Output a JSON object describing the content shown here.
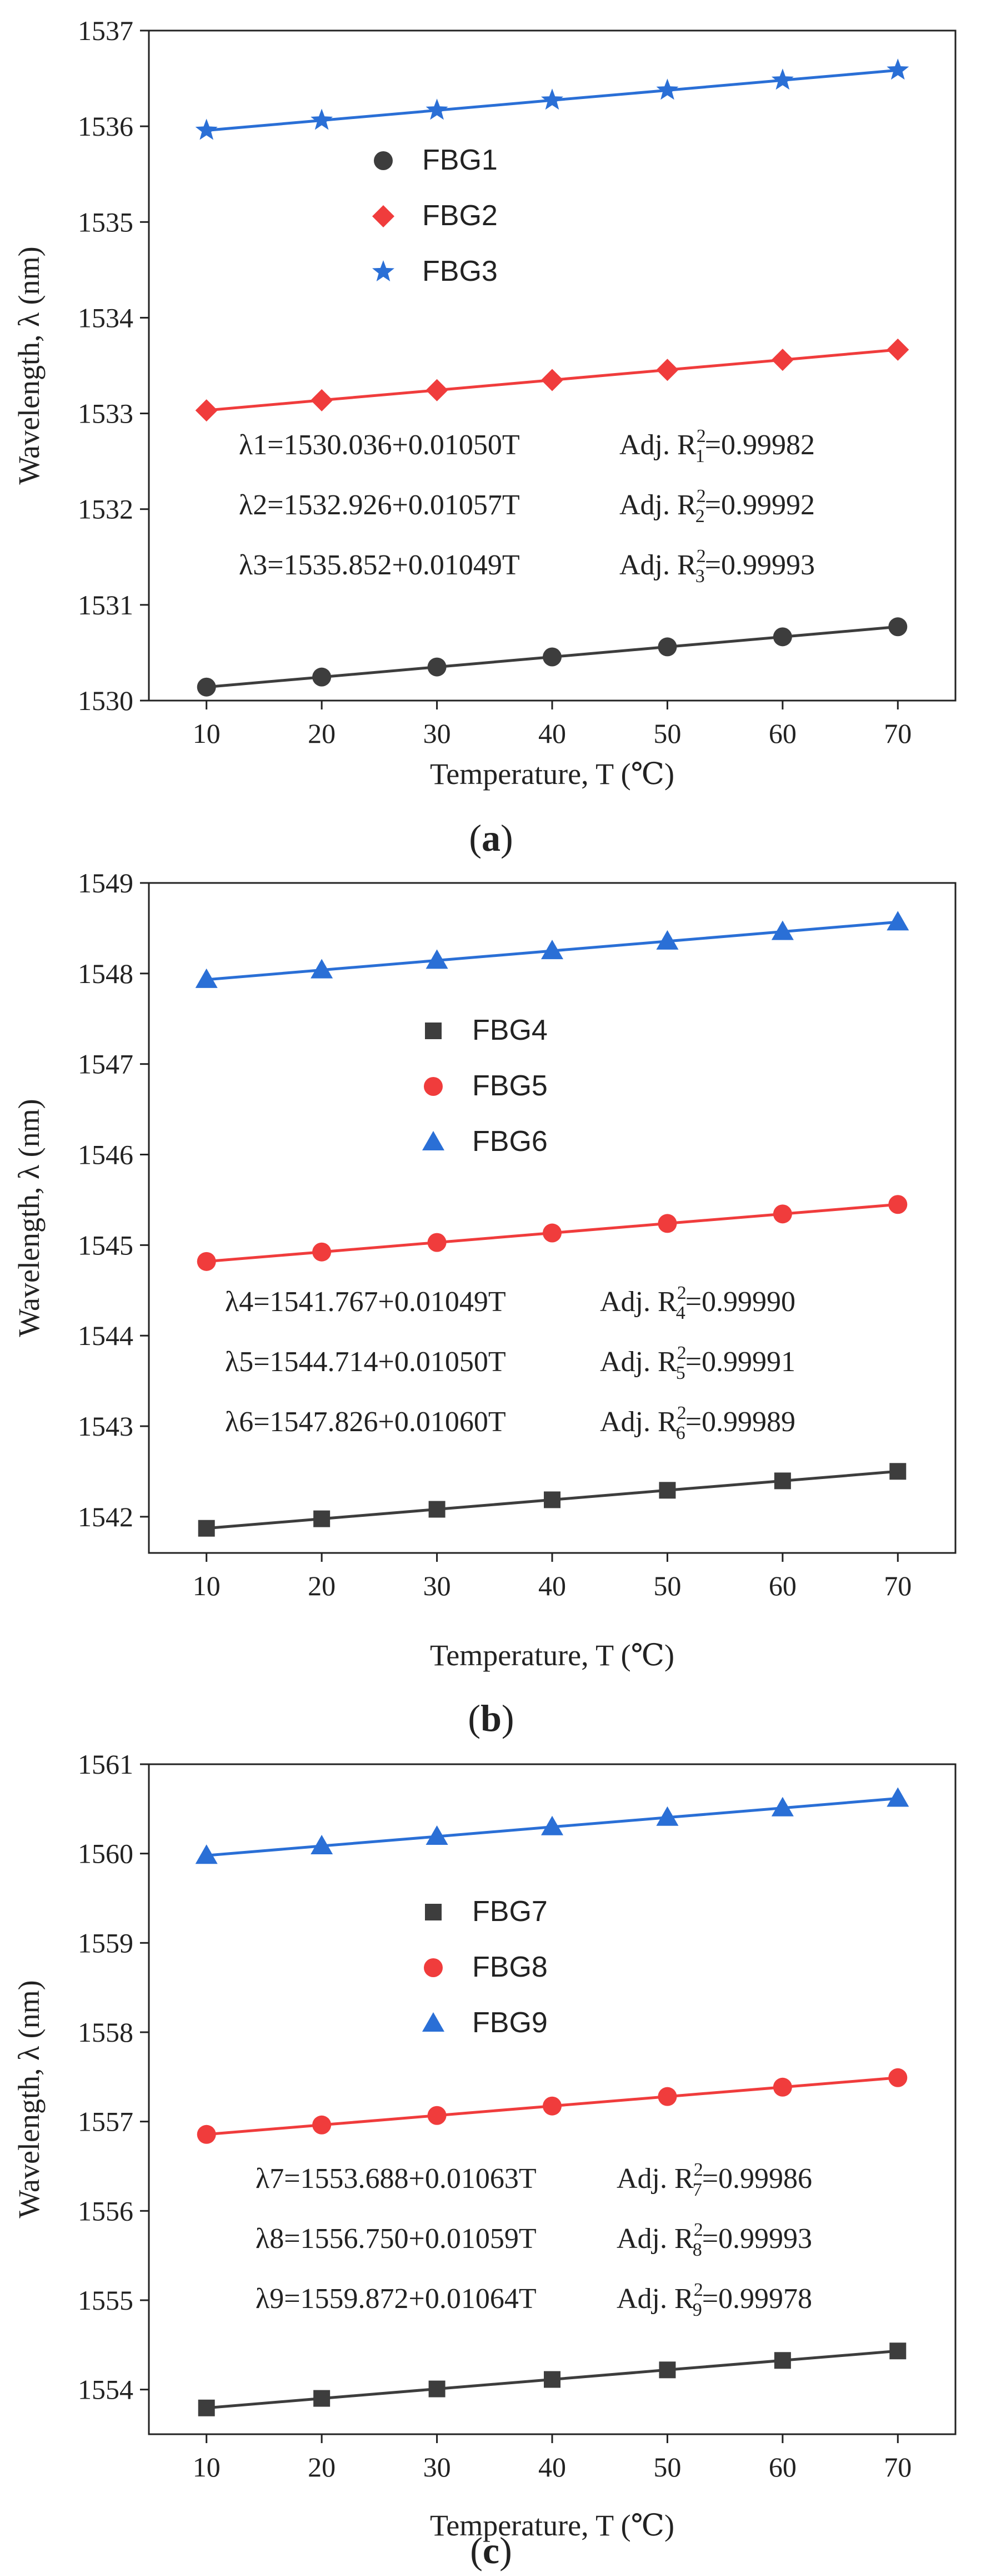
{
  "chart_data": [
    {
      "type": "line",
      "panel_label": "(a)",
      "xlabel": "Temperature, T (℃)",
      "ylabel": "Wavelength, λ (nm)",
      "xlim": [
        5,
        75
      ],
      "ylim": [
        1530,
        1537
      ],
      "xticks": [
        10,
        20,
        30,
        40,
        50,
        60,
        70
      ],
      "yticks": [
        1530,
        1531,
        1532,
        1533,
        1534,
        1535,
        1536,
        1537
      ],
      "x": [
        10,
        20,
        30,
        40,
        50,
        60,
        70
      ],
      "series": [
        {
          "name": "FBG1",
          "marker": "circle",
          "color": "#3d3d3d",
          "values": [
            1530.141,
            1530.246,
            1530.351,
            1530.456,
            1530.561,
            1530.666,
            1530.771
          ]
        },
        {
          "name": "FBG2",
          "marker": "diamond",
          "color": "#f03c3c",
          "values": [
            1533.032,
            1533.138,
            1533.243,
            1533.349,
            1533.455,
            1533.56,
            1533.666
          ]
        },
        {
          "name": "FBG3",
          "marker": "star",
          "color": "#2a6fd6",
          "values": [
            1535.957,
            1536.062,
            1536.167,
            1536.272,
            1536.376,
            1536.481,
            1536.586
          ]
        }
      ],
      "annotations": [
        {
          "eq_pre": "λ1=1530.036+0.01050T",
          "adj": "Adj. R",
          "sub": "1",
          "sup": "2",
          "val": "=0.99982"
        },
        {
          "eq_pre": "λ2=1532.926+0.01057T",
          "adj": "Adj. R",
          "sub": "2",
          "sup": "2",
          "val": "=0.99992"
        },
        {
          "eq_pre": "λ3=1535.852+0.01049T",
          "adj": "Adj. R",
          "sub": "3",
          "sup": "2",
          "val": "=0.99993"
        }
      ]
    },
    {
      "type": "line",
      "panel_label": "(b)",
      "xlabel": "Temperature, T (℃)",
      "ylabel": "Wavelength, λ (nm)",
      "xlim": [
        5,
        75
      ],
      "ylim": [
        1541.6,
        1549
      ],
      "xticks": [
        10,
        20,
        30,
        40,
        50,
        60,
        70
      ],
      "yticks": [
        1542,
        1543,
        1544,
        1545,
        1546,
        1547,
        1548,
        1549
      ],
      "x": [
        10,
        20,
        30,
        40,
        50,
        60,
        70
      ],
      "series": [
        {
          "name": "FBG4",
          "marker": "square",
          "color": "#3d3d3d",
          "values": [
            1541.872,
            1541.977,
            1542.082,
            1542.187,
            1542.292,
            1542.396,
            1542.501
          ]
        },
        {
          "name": "FBG5",
          "marker": "circle",
          "color": "#f03c3c",
          "values": [
            1544.819,
            1544.924,
            1545.029,
            1545.134,
            1545.239,
            1545.344,
            1545.449
          ]
        },
        {
          "name": "FBG6",
          "marker": "triangle",
          "color": "#2a6fd6",
          "values": [
            1547.932,
            1548.038,
            1548.144,
            1548.25,
            1548.356,
            1548.462,
            1548.568
          ]
        }
      ],
      "annotations": [
        {
          "eq_pre": "λ4=1541.767+0.01049T",
          "adj": "Adj. R",
          "sub": "4",
          "sup": "2",
          "val": "=0.99990"
        },
        {
          "eq_pre": "λ5=1544.714+0.01050T",
          "adj": "Adj. R",
          "sub": "5",
          "sup": "2",
          "val": "=0.99991"
        },
        {
          "eq_pre": "λ6=1547.826+0.01060T",
          "adj": "Adj. R",
          "sub": "6",
          "sup": "2",
          "val": "=0.99989"
        }
      ]
    },
    {
      "type": "line",
      "panel_label": "(c)",
      "xlabel": "Temperature, T (℃)",
      "ylabel": "Wavelength, λ (nm)",
      "xlim": [
        5,
        75
      ],
      "ylim": [
        1553.5,
        1561
      ],
      "xticks": [
        10,
        20,
        30,
        40,
        50,
        60,
        70
      ],
      "yticks": [
        1554,
        1555,
        1556,
        1557,
        1558,
        1559,
        1560,
        1561
      ],
      "x": [
        10,
        20,
        30,
        40,
        50,
        60,
        70
      ],
      "series": [
        {
          "name": "FBG7",
          "marker": "square",
          "color": "#3d3d3d",
          "values": [
            1553.794,
            1553.901,
            1554.007,
            1554.113,
            1554.22,
            1554.326,
            1554.432
          ]
        },
        {
          "name": "FBG8",
          "marker": "circle",
          "color": "#f03c3c",
          "values": [
            1556.856,
            1556.962,
            1557.068,
            1557.174,
            1557.28,
            1557.385,
            1557.491
          ]
        },
        {
          "name": "FBG9",
          "marker": "triangle",
          "color": "#2a6fd6",
          "values": [
            1559.978,
            1560.085,
            1560.191,
            1560.298,
            1560.404,
            1560.51,
            1560.617
          ]
        }
      ],
      "annotations": [
        {
          "eq_pre": "λ7=1553.688+0.01063T",
          "adj": "Adj. R",
          "sub": "7",
          "sup": "2",
          "val": "=0.99986"
        },
        {
          "eq_pre": "λ8=1556.750+0.01059T",
          "adj": "Adj. R",
          "sub": "8",
          "sup": "2",
          "val": "=0.99993"
        },
        {
          "eq_pre": "λ9=1559.872+0.01064T",
          "adj": "Adj. R",
          "sub": "9",
          "sup": "2",
          "val": "=0.99978"
        }
      ]
    }
  ]
}
